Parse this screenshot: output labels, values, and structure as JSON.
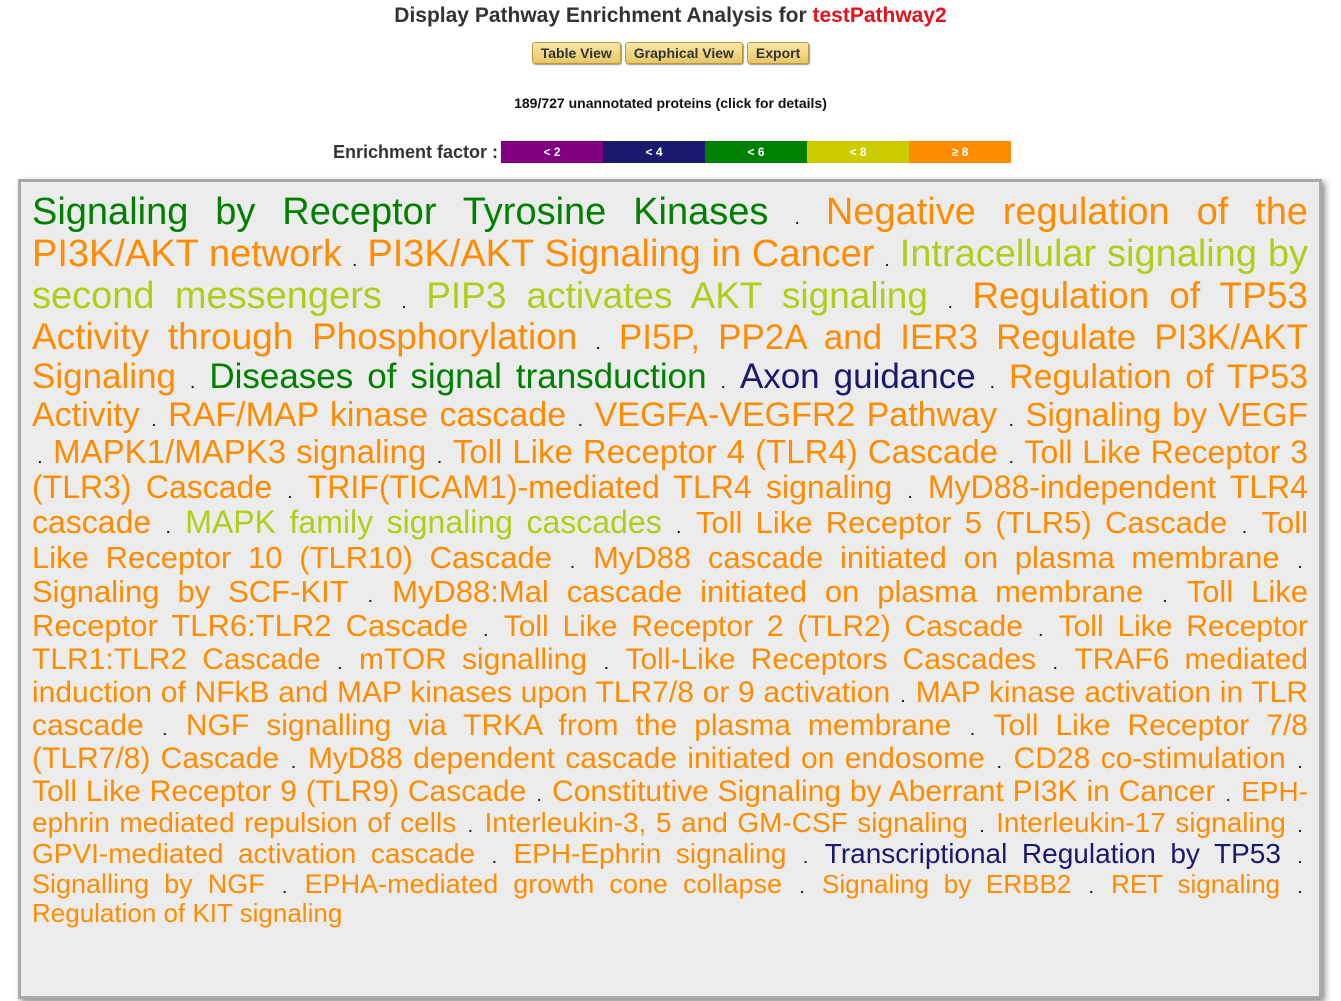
{
  "header": {
    "title_prefix": "Display Pathway Enrichment Analysis for ",
    "pathway_name": "testPathway2"
  },
  "toolbar": {
    "table_view": "Table View",
    "graphical_view": "Graphical View",
    "export": "Export"
  },
  "unannotated": "189/727 unannotated proteins (click for details)",
  "legend": {
    "label": "Enrichment factor :",
    "items": [
      {
        "label": "< 2",
        "color": "#800080"
      },
      {
        "label": "< 4",
        "color": "#191970"
      },
      {
        "label": "< 6",
        "color": "#008000"
      },
      {
        "label": "< 8",
        "color": "#cccc00"
      },
      {
        "label": "≥ 8",
        "color": "#ff8c00"
      }
    ]
  },
  "terms": [
    {
      "text": "Signaling by Receptor Tyrosine Kinases",
      "color": "#008000",
      "size": 38
    },
    {
      "text": "Negative regulation of the PI3K/AKT network",
      "color": "#ff8c00",
      "size": 38
    },
    {
      "text": "PI3K/AKT Signaling in Cancer",
      "color": "#ff8c00",
      "size": 38
    },
    {
      "text": "Intracellular signaling by second messengers",
      "color": "#b3cc1a",
      "size": 38
    },
    {
      "text": "PIP3 activates AKT signaling",
      "color": "#b3cc1a",
      "size": 37
    },
    {
      "text": "Regulation of TP53 Activity through Phosphorylation",
      "color": "#ff8c00",
      "size": 37
    },
    {
      "text": "PI5P, PP2A and IER3 Regulate PI3K/AKT Signaling",
      "color": "#ff8c00",
      "size": 35
    },
    {
      "text": "Diseases of signal transduction",
      "color": "#008000",
      "size": 35
    },
    {
      "text": "Axon guidance",
      "color": "#191970",
      "size": 35
    },
    {
      "text": "Regulation of TP53 Activity",
      "color": "#ff8c00",
      "size": 34
    },
    {
      "text": "RAF/MAP kinase cascade",
      "color": "#ff8c00",
      "size": 34
    },
    {
      "text": "VEGFA-VEGFR2 Pathway",
      "color": "#ff8c00",
      "size": 34
    },
    {
      "text": "Signaling by VEGF",
      "color": "#ff8c00",
      "size": 33
    },
    {
      "text": "MAPK1/MAPK3 signaling",
      "color": "#ff8c00",
      "size": 33
    },
    {
      "text": "Toll Like Receptor 4 (TLR4) Cascade",
      "color": "#ff8c00",
      "size": 33
    },
    {
      "text": "Toll Like Receptor 3 (TLR3) Cascade",
      "color": "#ff8c00",
      "size": 32
    },
    {
      "text": "TRIF(TICAM1)-mediated TLR4 signaling",
      "color": "#ff8c00",
      "size": 32
    },
    {
      "text": "MyD88-independent TLR4 cascade",
      "color": "#ff8c00",
      "size": 32
    },
    {
      "text": "MAPK family signaling cascades",
      "color": "#b3cc1a",
      "size": 32
    },
    {
      "text": "Toll Like Receptor 5 (TLR5) Cascade",
      "color": "#ff8c00",
      "size": 31
    },
    {
      "text": "Toll Like Receptor 10 (TLR10) Cascade",
      "color": "#ff8c00",
      "size": 31
    },
    {
      "text": "MyD88 cascade initiated on plasma membrane",
      "color": "#ff8c00",
      "size": 31
    },
    {
      "text": "Signaling by SCF-KIT",
      "color": "#ff8c00",
      "size": 31
    },
    {
      "text": "MyD88:Mal cascade initiated on plasma membrane",
      "color": "#ff8c00",
      "size": 31
    },
    {
      "text": "Toll Like Receptor TLR6:TLR2 Cascade",
      "color": "#ff8c00",
      "size": 31
    },
    {
      "text": "Toll Like Receptor 2 (TLR2) Cascade",
      "color": "#ff8c00",
      "size": 30
    },
    {
      "text": "Toll Like Receptor TLR1:TLR2 Cascade",
      "color": "#ff8c00",
      "size": 30
    },
    {
      "text": "mTOR signalling",
      "color": "#ff8c00",
      "size": 30
    },
    {
      "text": "Toll-Like Receptors Cascades",
      "color": "#ff8c00",
      "size": 30
    },
    {
      "text": "TRAF6 mediated induction of NFkB and MAP kinases upon TLR7/8 or 9 activation",
      "color": "#ff8c00",
      "size": 30
    },
    {
      "text": "MAP kinase activation in TLR cascade",
      "color": "#ff8c00",
      "size": 30
    },
    {
      "text": "NGF signalling via TRKA from the plasma membrane",
      "color": "#ff8c00",
      "size": 30
    },
    {
      "text": "Toll Like Receptor 7/8 (TLR7/8) Cascade",
      "color": "#ff8c00",
      "size": 30
    },
    {
      "text": "MyD88 dependent cascade initiated on endosome",
      "color": "#ff8c00",
      "size": 30
    },
    {
      "text": "CD28 co-stimulation",
      "color": "#ff8c00",
      "size": 30
    },
    {
      "text": "Toll Like Receptor 9 (TLR9) Cascade",
      "color": "#ff8c00",
      "size": 30
    },
    {
      "text": "Constitutive Signaling by Aberrant PI3K in Cancer",
      "color": "#ff8c00",
      "size": 30
    },
    {
      "text": "EPH-ephrin mediated repulsion of cells",
      "color": "#ff8c00",
      "size": 28
    },
    {
      "text": "Interleukin-3, 5 and GM-CSF signaling",
      "color": "#ff8c00",
      "size": 28
    },
    {
      "text": "Interleukin-17 signaling",
      "color": "#ff8c00",
      "size": 28
    },
    {
      "text": "GPVI-mediated activation cascade",
      "color": "#ff8c00",
      "size": 28
    },
    {
      "text": "EPH-Ephrin signaling",
      "color": "#ff8c00",
      "size": 28
    },
    {
      "text": "Transcriptional Regulation by TP53",
      "color": "#191970",
      "size": 28
    },
    {
      "text": "Signalling by NGF",
      "color": "#ff8c00",
      "size": 27
    },
    {
      "text": "EPHA-mediated growth cone collapse",
      "color": "#ff8c00",
      "size": 27
    },
    {
      "text": "Signaling by ERBB2",
      "color": "#ff8c00",
      "size": 26
    },
    {
      "text": "RET signaling",
      "color": "#ff8c00",
      "size": 26
    },
    {
      "text": "Regulation of KIT signaling",
      "color": "#ff8c00",
      "size": 26
    }
  ]
}
